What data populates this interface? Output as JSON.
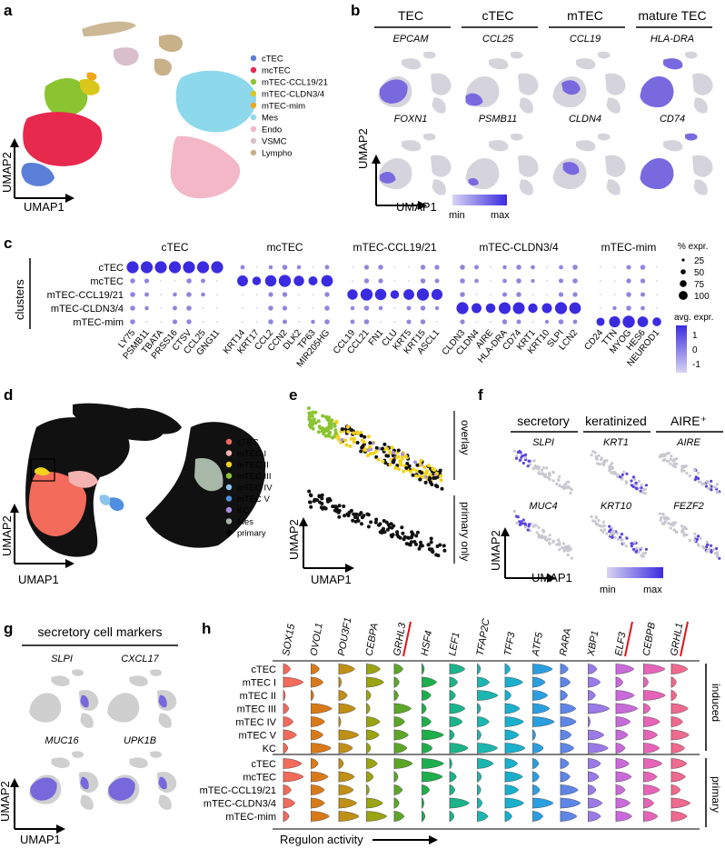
{
  "panels": {
    "a": "a",
    "b": "b",
    "c": "c",
    "d": "d",
    "e": "e",
    "f": "f",
    "g": "g",
    "h": "h"
  },
  "axes": {
    "x": "UMAP1",
    "y": "UMAP2"
  },
  "panel_a": {
    "legend": [
      {
        "label": "cTEC",
        "color": "#5b7fd8"
      },
      {
        "label": "mcTEC",
        "color": "#e8294e"
      },
      {
        "label": "mTEC-CCL19/21",
        "color": "#8ac431"
      },
      {
        "label": "mTEC-CLDN3/4",
        "color": "#d9c71c"
      },
      {
        "label": "mTEC-mim",
        "color": "#f2a51a"
      },
      {
        "label": "Mes",
        "color": "#8ed8ec"
      },
      {
        "label": "Endo",
        "color": "#f4b7c8"
      },
      {
        "label": "VSMC",
        "color": "#d8bfca"
      },
      {
        "label": "Lympho",
        "color": "#c8b089"
      }
    ]
  },
  "panel_b": {
    "headers": [
      "TEC",
      "cTEC",
      "mTEC",
      "mature TEC"
    ],
    "row1": [
      "EPCAM",
      "CCL25",
      "CCL19",
      "HLA-DRA"
    ],
    "row2": [
      "FOXN1",
      "PSMB11",
      "CLDN4",
      "CD74"
    ],
    "scale": {
      "min": "min",
      "max": "max"
    }
  },
  "panel_c": {
    "ylabel": "clusters",
    "rows": [
      "cTEC",
      "mcTEC",
      "mTEC-CCL19/21",
      "mTEC-CLDN3/4",
      "mTEC-mim"
    ],
    "groups": [
      {
        "name": "cTEC",
        "genes": [
          "LY75",
          "PSMB11",
          "TBATA",
          "PRSS16",
          "CTSV",
          "CCL25",
          "GNG11"
        ]
      },
      {
        "name": "mcTEC",
        "genes": [
          "KRT14",
          "KRT17",
          "CCL2",
          "CCN2",
          "DLK2",
          "TP63",
          "MIR205HG"
        ]
      },
      {
        "name": "mTEC-CCL19/21",
        "genes": [
          "CCL19",
          "CCL21",
          "FN1",
          "CLU",
          "KRT5",
          "KRT15",
          "ASCL1"
        ]
      },
      {
        "name": "mTEC-CLDN3/4",
        "genes": [
          "CLDN3",
          "CLDN4",
          "AIRE",
          "HLA-DRA",
          "CD74",
          "KRT1",
          "KRT10",
          "SLPI",
          "LCN2"
        ]
      },
      {
        "name": "mTEC-mim",
        "genes": [
          "CD24",
          "TTN",
          "MYOG",
          "HES6",
          "NEUROD1"
        ]
      }
    ],
    "size_legend": {
      "title": "% expr.",
      "values": [
        "25",
        "50",
        "75",
        "100"
      ]
    },
    "color_legend": {
      "title": "avg. expr.",
      "ticks": [
        "1",
        "0",
        "-1"
      ]
    }
  },
  "panel_d": {
    "legend": [
      {
        "label": "cTEC",
        "color": "#f26b5b"
      },
      {
        "label": "mTEC I",
        "color": "#f4b3b0"
      },
      {
        "label": "mTEC II",
        "color": "#f2d21c"
      },
      {
        "label": "mTEC III",
        "color": "#8ac431"
      },
      {
        "label": "mTEC IV",
        "color": "#8cc4ee"
      },
      {
        "label": "mTEC V",
        "color": "#4f8fe0"
      },
      {
        "label": "KC",
        "color": "#a98ee0"
      },
      {
        "label": "Mes",
        "color": "#a8b8a8"
      },
      {
        "label": "primary",
        "color": "#000000"
      }
    ]
  },
  "panel_e": {
    "top": "overlay",
    "bottom": "primary only"
  },
  "panel_f": {
    "headers": [
      "secretory",
      "keratinized",
      "AIRE⁺"
    ],
    "row1": [
      "SLPI",
      "KRT1",
      "AIRE"
    ],
    "row2": [
      "MUC4",
      "KRT10",
      "FEZF2"
    ],
    "scale": {
      "min": "min",
      "max": "max"
    }
  },
  "panel_g": {
    "title": "secretory cell markers",
    "row1": [
      "SLPI",
      "CXCL17"
    ],
    "row2": [
      "MUC16",
      "UPK1B"
    ]
  },
  "panel_h": {
    "regulons": [
      "SOX15",
      "OVOL1",
      "POU3F1",
      "CEBPA",
      "GRHL3",
      "HSF4",
      "LEF1",
      "TFAP2C",
      "TFF3",
      "ATF5",
      "RARA",
      "XBP1",
      "ELF3",
      "CEBPB",
      "GRHL1"
    ],
    "underlined": [
      "GRHL3",
      "ELF3",
      "GRHL1"
    ],
    "colors": [
      "#f26b5b",
      "#d97a1a",
      "#c08f16",
      "#9aa312",
      "#5da62a",
      "#1fae4e",
      "#1cb38a",
      "#1cb5b0",
      "#1ab0cc",
      "#2b9ee0",
      "#5f86e6",
      "#9a7ae6",
      "#c86ad8",
      "#e564b8",
      "#ee6a8e"
    ],
    "induced_rows": [
      "cTEC",
      "mTEC I",
      "mTEC II",
      "mTEC III",
      "mTEC IV",
      "mTEC V",
      "KC"
    ],
    "primary_rows": [
      "cTEC",
      "mcTEC",
      "mTEC-CCL19/21",
      "mTEC-CLDN3/4",
      "mTEC-mim"
    ],
    "group_labels": {
      "induced": "induced",
      "primary": "primary"
    },
    "xlabel": "Regulon activity"
  }
}
